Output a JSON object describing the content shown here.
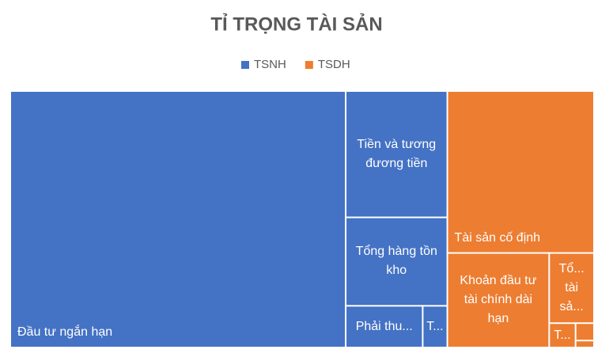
{
  "chart_data": {
    "type": "treemap",
    "title": "TỈ TRỌNG TÀI SẢN",
    "series": [
      {
        "name": "TSNH",
        "color": "#4472c4",
        "categories": [
          "Đầu tư ngắn hạn",
          "Tiền và tương đương tiền",
          "Tổng hàng tồn kho",
          "Phải thu...",
          "T..."
        ],
        "values": [
          134,
          20,
          14,
          5,
          1.6
        ]
      },
      {
        "name": "TSDH",
        "color": "#ed7d31",
        "categories": [
          "Tài sản cố định",
          "Khoản đầu tư tài chính dài hạn",
          "Tổ... tài sả...",
          "T...",
          null,
          null
        ],
        "values": [
          37,
          15,
          4.9,
          1,
          0.5,
          0.2
        ]
      }
    ]
  }
}
